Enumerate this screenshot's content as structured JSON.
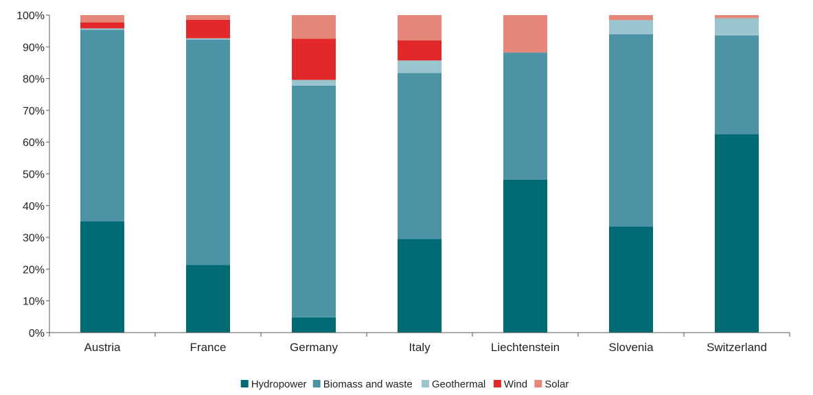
{
  "chart_data": {
    "type": "bar",
    "stacked": true,
    "percent_stacked": true,
    "categories": [
      "Austria",
      "France",
      "Germany",
      "Italy",
      "Liechtenstein",
      "Slovenia",
      "Switzerland"
    ],
    "series": [
      {
        "name": "Hydropower",
        "color": "#006b73",
        "values": [
          35.0,
          21.3,
          4.8,
          29.5,
          48.2,
          33.4,
          62.5
        ]
      },
      {
        "name": "Biomass and waste",
        "color": "#4d93a6",
        "values": [
          60.4,
          71.0,
          73.0,
          52.3,
          40.0,
          60.6,
          31.1
        ]
      },
      {
        "name": "Geothermal",
        "color": "#9cc6cf",
        "values": [
          0.4,
          0.4,
          1.8,
          3.9,
          0.0,
          4.4,
          5.4
        ]
      },
      {
        "name": "Wind",
        "color": "#e3282b",
        "values": [
          1.9,
          5.8,
          13.0,
          6.3,
          0.0,
          0.0,
          0.0
        ]
      },
      {
        "name": "Solar",
        "color": "#e5877b",
        "values": [
          2.3,
          1.5,
          7.4,
          8.0,
          11.8,
          1.6,
          1.0
        ]
      }
    ],
    "yticks": [
      "0%",
      "10%",
      "20%",
      "30%",
      "40%",
      "50%",
      "60%",
      "70%",
      "80%",
      "90%",
      "100%"
    ],
    "ylim": [
      0,
      100
    ],
    "xlabel": "",
    "ylabel": "",
    "grid": false,
    "legend_position": "bottom"
  }
}
